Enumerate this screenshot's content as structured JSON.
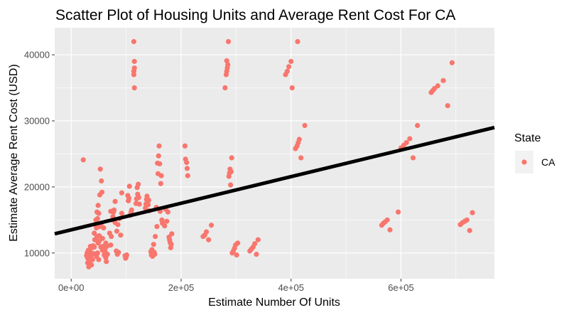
{
  "chart_data": {
    "type": "scatter",
    "title": "Scatter Plot of Housing Units and Average Rent Cost For CA",
    "xlabel": "Estimate Number Of Units",
    "ylabel": "Estimate Average Rent Cost (USD)",
    "xlim": [
      -30000,
      770000
    ],
    "ylim": [
      6100,
      44100
    ],
    "x_ticks": [
      0,
      200000,
      400000,
      600000
    ],
    "x_tick_labels": [
      "0e+00",
      "2e+05",
      "4e+05",
      "6e+05"
    ],
    "y_ticks": [
      10000,
      20000,
      30000,
      40000
    ],
    "y_tick_labels": [
      "10000",
      "20000",
      "30000",
      "40000"
    ],
    "grid": true,
    "legend": {
      "title": "State",
      "placement": "right",
      "entries": [
        "CA"
      ]
    },
    "colors": {
      "points": "#F8766D",
      "trend_line": "#000000",
      "panel": "#EBEBEB",
      "grid": "#FFFFFF"
    },
    "series": [
      {
        "name": "CA",
        "points": [
          [
            22000,
            24100
          ],
          [
            28000,
            9600
          ],
          [
            29000,
            10000
          ],
          [
            30000,
            8500
          ],
          [
            30000,
            9200
          ],
          [
            31000,
            9800
          ],
          [
            31000,
            10400
          ],
          [
            32000,
            7900
          ],
          [
            33000,
            8700
          ],
          [
            33000,
            9200
          ],
          [
            34000,
            10200
          ],
          [
            35000,
            11000
          ],
          [
            36000,
            9500
          ],
          [
            36000,
            10000
          ],
          [
            37000,
            8200
          ],
          [
            38000,
            10800
          ],
          [
            39000,
            9000
          ],
          [
            40000,
            11100
          ],
          [
            41000,
            9900
          ],
          [
            42000,
            10900
          ],
          [
            42000,
            13000
          ],
          [
            43000,
            12000
          ],
          [
            44000,
            14300
          ],
          [
            45000,
            15000
          ],
          [
            46000,
            9500
          ],
          [
            46000,
            13800
          ],
          [
            47000,
            16200
          ],
          [
            47000,
            12500
          ],
          [
            48000,
            15200
          ],
          [
            48000,
            10000
          ],
          [
            49000,
            17200
          ],
          [
            49000,
            11500
          ],
          [
            50000,
            16000
          ],
          [
            50000,
            9000
          ],
          [
            51000,
            12600
          ],
          [
            51000,
            11800
          ],
          [
            52000,
            14000
          ],
          [
            52000,
            18800
          ],
          [
            53000,
            22700
          ],
          [
            54000,
            10900
          ],
          [
            55000,
            20900
          ],
          [
            55000,
            14500
          ],
          [
            56000,
            19200
          ],
          [
            57000,
            12200
          ],
          [
            57000,
            10400
          ],
          [
            58000,
            11000
          ],
          [
            59000,
            13800
          ],
          [
            60000,
            10800
          ],
          [
            60000,
            9700
          ],
          [
            61000,
            10500
          ],
          [
            62000,
            10100
          ],
          [
            63000,
            11500
          ],
          [
            63000,
            9300
          ],
          [
            64000,
            8700
          ],
          [
            65000,
            11000
          ],
          [
            66000,
            9800
          ],
          [
            70000,
            13000
          ],
          [
            72000,
            16300
          ],
          [
            72000,
            11200
          ],
          [
            73000,
            12500
          ],
          [
            75000,
            15000
          ],
          [
            76000,
            15500
          ],
          [
            77000,
            16200
          ],
          [
            78000,
            16500
          ],
          [
            80000,
            17800
          ],
          [
            80000,
            14600
          ],
          [
            82000,
            10300
          ],
          [
            83000,
            13300
          ],
          [
            84000,
            9800
          ],
          [
            85000,
            14300
          ],
          [
            86000,
            10100
          ],
          [
            88000,
            15200
          ],
          [
            90000,
            12700
          ],
          [
            92000,
            16000
          ],
          [
            92000,
            19100
          ],
          [
            98000,
            9600
          ],
          [
            99000,
            9200
          ],
          [
            100000,
            9400
          ],
          [
            101000,
            9700
          ],
          [
            103000,
            18700
          ],
          [
            104000,
            17900
          ],
          [
            105000,
            18300
          ],
          [
            106000,
            20100
          ],
          [
            107000,
            15700
          ],
          [
            109000,
            16200
          ],
          [
            110000,
            16500
          ],
          [
            114000,
            42000
          ],
          [
            115000,
            39000
          ],
          [
            115000,
            38000
          ],
          [
            114000,
            37500
          ],
          [
            114000,
            37000
          ],
          [
            115000,
            35000
          ],
          [
            118000,
            17500
          ],
          [
            119000,
            18200
          ],
          [
            120000,
            19900
          ],
          [
            121000,
            18900
          ],
          [
            122000,
            20400
          ],
          [
            123000,
            18400
          ],
          [
            124000,
            17400
          ],
          [
            135000,
            16800
          ],
          [
            136000,
            17400
          ],
          [
            137000,
            18100
          ],
          [
            138000,
            18600
          ],
          [
            139000,
            17600
          ],
          [
            140000,
            17300
          ],
          [
            141000,
            18000
          ],
          [
            142000,
            16400
          ],
          [
            145000,
            10200
          ],
          [
            146000,
            9700
          ],
          [
            147000,
            10500
          ],
          [
            148000,
            9500
          ],
          [
            150000,
            11300
          ],
          [
            151000,
            10100
          ],
          [
            152000,
            9800
          ],
          [
            153000,
            12500
          ],
          [
            155000,
            16900
          ],
          [
            156000,
            14000
          ],
          [
            157000,
            23600
          ],
          [
            158000,
            22000
          ],
          [
            159000,
            24700
          ],
          [
            160000,
            26200
          ],
          [
            161000,
            23500
          ],
          [
            162000,
            16300
          ],
          [
            163000,
            20500
          ],
          [
            164000,
            21700
          ],
          [
            165000,
            15000
          ],
          [
            166000,
            14500
          ],
          [
            170000,
            14100
          ],
          [
            172000,
            16600
          ],
          [
            174000,
            14800
          ],
          [
            176000,
            16200
          ],
          [
            178000,
            12400
          ],
          [
            179000,
            12000
          ],
          [
            180000,
            11600
          ],
          [
            181000,
            10800
          ],
          [
            182000,
            11300
          ],
          [
            183000,
            12900
          ],
          [
            207000,
            26200
          ],
          [
            208000,
            24200
          ],
          [
            210000,
            23700
          ],
          [
            211000,
            22800
          ],
          [
            212000,
            21700
          ],
          [
            240000,
            12500
          ],
          [
            243000,
            12700
          ],
          [
            246000,
            13200
          ],
          [
            250000,
            12000
          ],
          [
            255000,
            14200
          ],
          [
            280000,
            35000
          ],
          [
            282000,
            37000
          ],
          [
            283000,
            37500
          ],
          [
            284000,
            38000
          ],
          [
            285000,
            38500
          ],
          [
            283000,
            39100
          ],
          [
            286000,
            42000
          ],
          [
            287000,
            21600
          ],
          [
            288000,
            22100
          ],
          [
            289000,
            22700
          ],
          [
            290000,
            20300
          ],
          [
            291000,
            22300
          ],
          [
            292000,
            24400
          ],
          [
            293000,
            10000
          ],
          [
            295000,
            10300
          ],
          [
            297000,
            10700
          ],
          [
            299000,
            11200
          ],
          [
            301000,
            9700
          ],
          [
            303000,
            11500
          ],
          [
            325000,
            10300
          ],
          [
            328000,
            10600
          ],
          [
            331000,
            10900
          ],
          [
            334000,
            11400
          ],
          [
            337000,
            9800
          ],
          [
            340000,
            12000
          ],
          [
            390000,
            37000
          ],
          [
            393000,
            37500
          ],
          [
            396000,
            38200
          ],
          [
            400000,
            39000
          ],
          [
            402000,
            35000
          ],
          [
            412000,
            42000
          ],
          [
            408000,
            25800
          ],
          [
            411000,
            26200
          ],
          [
            413000,
            26700
          ],
          [
            415000,
            27200
          ],
          [
            418000,
            24400
          ],
          [
            425000,
            29300
          ],
          [
            565000,
            14200
          ],
          [
            568000,
            14500
          ],
          [
            571000,
            14700
          ],
          [
            575000,
            15000
          ],
          [
            580000,
            13500
          ],
          [
            595000,
            16200
          ],
          [
            600000,
            25900
          ],
          [
            605000,
            26300
          ],
          [
            610000,
            26700
          ],
          [
            616000,
            27300
          ],
          [
            622000,
            24400
          ],
          [
            630000,
            29300
          ],
          [
            655000,
            34300
          ],
          [
            658000,
            34600
          ],
          [
            661000,
            34900
          ],
          [
            667000,
            35300
          ],
          [
            677000,
            36100
          ],
          [
            685000,
            32300
          ],
          [
            693000,
            38800
          ],
          [
            708000,
            14300
          ],
          [
            712000,
            14600
          ],
          [
            716000,
            14800
          ],
          [
            720000,
            15000
          ],
          [
            725000,
            13400
          ],
          [
            730000,
            16100
          ]
        ]
      }
    ],
    "trend_line": {
      "x": [
        -30000,
        770000
      ],
      "y": [
        12900,
        29000
      ]
    }
  }
}
